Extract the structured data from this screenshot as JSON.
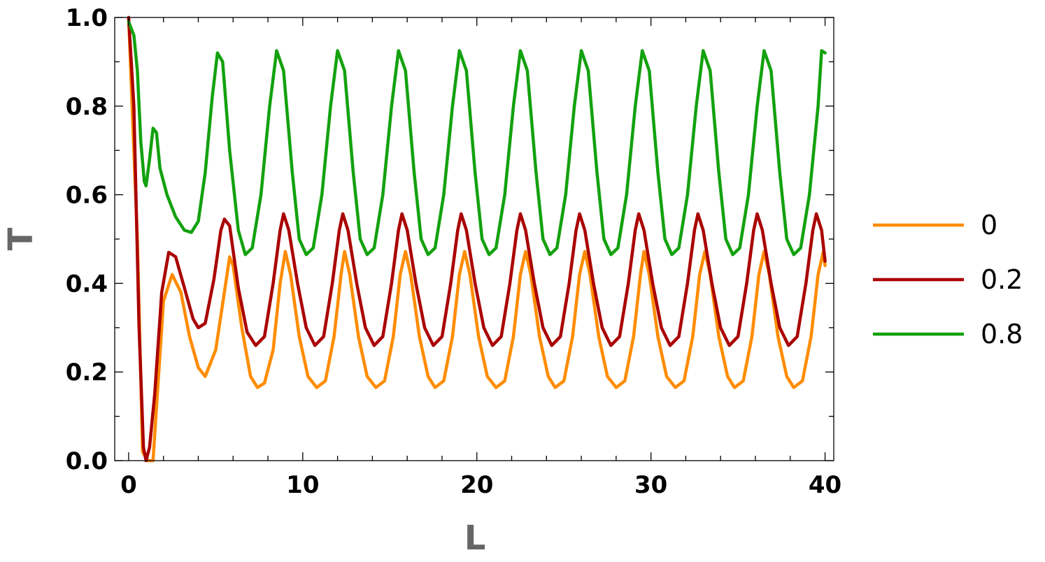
{
  "chart_data": {
    "type": "line",
    "xlabel": "L",
    "ylabel": "T",
    "xlim": [
      -0.8,
      40.5
    ],
    "ylim": [
      0,
      1.0
    ],
    "x_ticks": [
      0,
      10,
      20,
      30,
      40
    ],
    "y_ticks": [
      0.0,
      0.2,
      0.4,
      0.6,
      0.8,
      1.0
    ],
    "x_tick_labels": [
      "0",
      "10",
      "20",
      "30",
      "40"
    ],
    "y_tick_labels": [
      "0.0",
      "0.2",
      "0.4",
      "0.6",
      "0.8",
      "1.0"
    ],
    "grid": false,
    "legend_position": "right",
    "series": [
      {
        "name": "0",
        "color": "#FF8C00",
        "points": [
          [
            0,
            1.0
          ],
          [
            0.5,
            0.5
          ],
          [
            0.8,
            0.02
          ],
          [
            1.1,
            0.0
          ],
          [
            1.4,
            0.0
          ],
          [
            1.6,
            0.12
          ],
          [
            2.0,
            0.36
          ],
          [
            2.5,
            0.42
          ],
          [
            3.0,
            0.38
          ],
          [
            3.5,
            0.28
          ],
          [
            4.0,
            0.21
          ],
          [
            4.4,
            0.19
          ],
          [
            5.0,
            0.25
          ],
          [
            5.5,
            0.38
          ],
          [
            5.8,
            0.46
          ],
          [
            6.0,
            0.44
          ],
          [
            6.5,
            0.3
          ],
          [
            7.0,
            0.19
          ],
          [
            7.4,
            0.165
          ],
          [
            7.8,
            0.175
          ],
          [
            8.3,
            0.25
          ],
          [
            8.7,
            0.4
          ],
          [
            9.0,
            0.472
          ],
          [
            9.3,
            0.42
          ],
          [
            9.8,
            0.28
          ],
          [
            10.3,
            0.19
          ],
          [
            10.8,
            0.165
          ],
          [
            11.3,
            0.18
          ],
          [
            11.8,
            0.28
          ],
          [
            12.2,
            0.42
          ],
          [
            12.4,
            0.472
          ],
          [
            12.7,
            0.42
          ],
          [
            13.2,
            0.28
          ],
          [
            13.7,
            0.19
          ],
          [
            14.2,
            0.165
          ],
          [
            14.7,
            0.18
          ],
          [
            15.2,
            0.28
          ],
          [
            15.6,
            0.42
          ],
          [
            15.9,
            0.472
          ],
          [
            16.2,
            0.42
          ],
          [
            16.7,
            0.28
          ],
          [
            17.2,
            0.19
          ],
          [
            17.6,
            0.165
          ],
          [
            18.1,
            0.18
          ],
          [
            18.6,
            0.28
          ],
          [
            19.0,
            0.42
          ],
          [
            19.3,
            0.472
          ],
          [
            19.6,
            0.42
          ],
          [
            20.1,
            0.28
          ],
          [
            20.6,
            0.19
          ],
          [
            21.1,
            0.165
          ],
          [
            21.6,
            0.18
          ],
          [
            22.1,
            0.28
          ],
          [
            22.5,
            0.42
          ],
          [
            22.8,
            0.472
          ],
          [
            23.1,
            0.42
          ],
          [
            23.6,
            0.28
          ],
          [
            24.1,
            0.19
          ],
          [
            24.5,
            0.165
          ],
          [
            25.0,
            0.18
          ],
          [
            25.5,
            0.28
          ],
          [
            25.9,
            0.42
          ],
          [
            26.2,
            0.472
          ],
          [
            26.5,
            0.42
          ],
          [
            27.0,
            0.28
          ],
          [
            27.5,
            0.19
          ],
          [
            28.0,
            0.165
          ],
          [
            28.5,
            0.18
          ],
          [
            29.0,
            0.28
          ],
          [
            29.4,
            0.42
          ],
          [
            29.6,
            0.472
          ],
          [
            29.9,
            0.42
          ],
          [
            30.4,
            0.28
          ],
          [
            30.9,
            0.19
          ],
          [
            31.4,
            0.165
          ],
          [
            31.9,
            0.18
          ],
          [
            32.4,
            0.28
          ],
          [
            32.8,
            0.42
          ],
          [
            33.1,
            0.472
          ],
          [
            33.4,
            0.42
          ],
          [
            33.9,
            0.28
          ],
          [
            34.4,
            0.19
          ],
          [
            34.8,
            0.165
          ],
          [
            35.3,
            0.18
          ],
          [
            35.8,
            0.28
          ],
          [
            36.2,
            0.42
          ],
          [
            36.5,
            0.472
          ],
          [
            36.8,
            0.42
          ],
          [
            37.3,
            0.28
          ],
          [
            37.8,
            0.19
          ],
          [
            38.2,
            0.165
          ],
          [
            38.7,
            0.18
          ],
          [
            39.2,
            0.28
          ],
          [
            39.6,
            0.42
          ],
          [
            39.9,
            0.472
          ],
          [
            40.0,
            0.44
          ]
        ]
      },
      {
        "name": "0.2",
        "color": "#AA0000",
        "points": [
          [
            0,
            1.0
          ],
          [
            0.3,
            0.8
          ],
          [
            0.6,
            0.3
          ],
          [
            0.85,
            0.03
          ],
          [
            1.0,
            0.0
          ],
          [
            1.2,
            0.03
          ],
          [
            1.5,
            0.15
          ],
          [
            1.9,
            0.38
          ],
          [
            2.3,
            0.47
          ],
          [
            2.7,
            0.46
          ],
          [
            3.2,
            0.39
          ],
          [
            3.7,
            0.32
          ],
          [
            4.0,
            0.3
          ],
          [
            4.4,
            0.31
          ],
          [
            4.9,
            0.41
          ],
          [
            5.3,
            0.52
          ],
          [
            5.5,
            0.545
          ],
          [
            5.8,
            0.53
          ],
          [
            6.3,
            0.39
          ],
          [
            6.8,
            0.29
          ],
          [
            7.3,
            0.26
          ],
          [
            7.8,
            0.28
          ],
          [
            8.3,
            0.4
          ],
          [
            8.7,
            0.52
          ],
          [
            8.9,
            0.557
          ],
          [
            9.2,
            0.52
          ],
          [
            9.7,
            0.4
          ],
          [
            10.2,
            0.3
          ],
          [
            10.7,
            0.26
          ],
          [
            11.2,
            0.28
          ],
          [
            11.7,
            0.4
          ],
          [
            12.1,
            0.52
          ],
          [
            12.3,
            0.557
          ],
          [
            12.6,
            0.52
          ],
          [
            13.1,
            0.4
          ],
          [
            13.6,
            0.3
          ],
          [
            14.1,
            0.26
          ],
          [
            14.6,
            0.28
          ],
          [
            15.1,
            0.4
          ],
          [
            15.5,
            0.52
          ],
          [
            15.7,
            0.557
          ],
          [
            16.0,
            0.52
          ],
          [
            16.5,
            0.4
          ],
          [
            17.0,
            0.3
          ],
          [
            17.5,
            0.26
          ],
          [
            18.0,
            0.28
          ],
          [
            18.5,
            0.4
          ],
          [
            18.9,
            0.52
          ],
          [
            19.1,
            0.557
          ],
          [
            19.4,
            0.52
          ],
          [
            19.9,
            0.4
          ],
          [
            20.4,
            0.3
          ],
          [
            20.9,
            0.26
          ],
          [
            21.4,
            0.28
          ],
          [
            21.9,
            0.4
          ],
          [
            22.3,
            0.52
          ],
          [
            22.5,
            0.557
          ],
          [
            22.8,
            0.52
          ],
          [
            23.3,
            0.4
          ],
          [
            23.8,
            0.3
          ],
          [
            24.3,
            0.26
          ],
          [
            24.8,
            0.28
          ],
          [
            25.3,
            0.4
          ],
          [
            25.7,
            0.52
          ],
          [
            25.9,
            0.557
          ],
          [
            26.2,
            0.52
          ],
          [
            26.7,
            0.4
          ],
          [
            27.2,
            0.3
          ],
          [
            27.7,
            0.26
          ],
          [
            28.2,
            0.28
          ],
          [
            28.7,
            0.4
          ],
          [
            29.1,
            0.52
          ],
          [
            29.3,
            0.557
          ],
          [
            29.6,
            0.52
          ],
          [
            30.1,
            0.4
          ],
          [
            30.6,
            0.3
          ],
          [
            31.1,
            0.26
          ],
          [
            31.6,
            0.28
          ],
          [
            32.1,
            0.4
          ],
          [
            32.5,
            0.52
          ],
          [
            32.7,
            0.557
          ],
          [
            33.0,
            0.52
          ],
          [
            33.5,
            0.4
          ],
          [
            34.0,
            0.3
          ],
          [
            34.5,
            0.26
          ],
          [
            35.0,
            0.28
          ],
          [
            35.5,
            0.4
          ],
          [
            35.9,
            0.52
          ],
          [
            36.1,
            0.557
          ],
          [
            36.4,
            0.52
          ],
          [
            36.9,
            0.4
          ],
          [
            37.4,
            0.3
          ],
          [
            37.9,
            0.26
          ],
          [
            38.4,
            0.28
          ],
          [
            38.9,
            0.4
          ],
          [
            39.3,
            0.52
          ],
          [
            39.5,
            0.557
          ],
          [
            39.8,
            0.52
          ],
          [
            40.0,
            0.45
          ]
        ]
      },
      {
        "name": "0.8",
        "color": "#13A10E",
        "points": [
          [
            0,
            0.99
          ],
          [
            0.3,
            0.96
          ],
          [
            0.5,
            0.88
          ],
          [
            0.7,
            0.72
          ],
          [
            0.9,
            0.63
          ],
          [
            1.0,
            0.62
          ],
          [
            1.2,
            0.68
          ],
          [
            1.4,
            0.75
          ],
          [
            1.6,
            0.74
          ],
          [
            1.8,
            0.66
          ],
          [
            2.2,
            0.6
          ],
          [
            2.7,
            0.55
          ],
          [
            3.2,
            0.52
          ],
          [
            3.6,
            0.515
          ],
          [
            4.0,
            0.54
          ],
          [
            4.4,
            0.65
          ],
          [
            4.8,
            0.82
          ],
          [
            5.1,
            0.92
          ],
          [
            5.4,
            0.9
          ],
          [
            5.8,
            0.7
          ],
          [
            6.3,
            0.52
          ],
          [
            6.7,
            0.465
          ],
          [
            7.1,
            0.48
          ],
          [
            7.6,
            0.6
          ],
          [
            8.1,
            0.8
          ],
          [
            8.5,
            0.925
          ],
          [
            8.9,
            0.88
          ],
          [
            9.4,
            0.65
          ],
          [
            9.8,
            0.5
          ],
          [
            10.2,
            0.465
          ],
          [
            10.6,
            0.48
          ],
          [
            11.1,
            0.6
          ],
          [
            11.6,
            0.8
          ],
          [
            12.0,
            0.925
          ],
          [
            12.4,
            0.88
          ],
          [
            12.9,
            0.65
          ],
          [
            13.3,
            0.5
          ],
          [
            13.7,
            0.465
          ],
          [
            14.1,
            0.48
          ],
          [
            14.6,
            0.6
          ],
          [
            15.1,
            0.8
          ],
          [
            15.5,
            0.925
          ],
          [
            15.9,
            0.88
          ],
          [
            16.4,
            0.65
          ],
          [
            16.8,
            0.5
          ],
          [
            17.2,
            0.465
          ],
          [
            17.6,
            0.48
          ],
          [
            18.1,
            0.6
          ],
          [
            18.6,
            0.8
          ],
          [
            19.0,
            0.925
          ],
          [
            19.4,
            0.88
          ],
          [
            19.9,
            0.65
          ],
          [
            20.3,
            0.5
          ],
          [
            20.7,
            0.465
          ],
          [
            21.1,
            0.48
          ],
          [
            21.6,
            0.6
          ],
          [
            22.1,
            0.8
          ],
          [
            22.5,
            0.925
          ],
          [
            22.9,
            0.88
          ],
          [
            23.4,
            0.65
          ],
          [
            23.8,
            0.5
          ],
          [
            24.2,
            0.465
          ],
          [
            24.6,
            0.48
          ],
          [
            25.1,
            0.6
          ],
          [
            25.6,
            0.8
          ],
          [
            26.0,
            0.925
          ],
          [
            26.4,
            0.88
          ],
          [
            26.9,
            0.65
          ],
          [
            27.3,
            0.5
          ],
          [
            27.7,
            0.465
          ],
          [
            28.1,
            0.48
          ],
          [
            28.6,
            0.6
          ],
          [
            29.1,
            0.8
          ],
          [
            29.5,
            0.925
          ],
          [
            29.9,
            0.88
          ],
          [
            30.4,
            0.65
          ],
          [
            30.8,
            0.5
          ],
          [
            31.2,
            0.465
          ],
          [
            31.6,
            0.48
          ],
          [
            32.1,
            0.6
          ],
          [
            32.6,
            0.8
          ],
          [
            33.0,
            0.925
          ],
          [
            33.4,
            0.88
          ],
          [
            33.9,
            0.65
          ],
          [
            34.3,
            0.5
          ],
          [
            34.7,
            0.465
          ],
          [
            35.1,
            0.48
          ],
          [
            35.6,
            0.6
          ],
          [
            36.1,
            0.8
          ],
          [
            36.5,
            0.925
          ],
          [
            36.9,
            0.88
          ],
          [
            37.4,
            0.65
          ],
          [
            37.8,
            0.5
          ],
          [
            38.2,
            0.465
          ],
          [
            38.6,
            0.48
          ],
          [
            39.1,
            0.6
          ],
          [
            39.6,
            0.8
          ],
          [
            39.8,
            0.925
          ],
          [
            40.0,
            0.92
          ]
        ]
      }
    ]
  }
}
